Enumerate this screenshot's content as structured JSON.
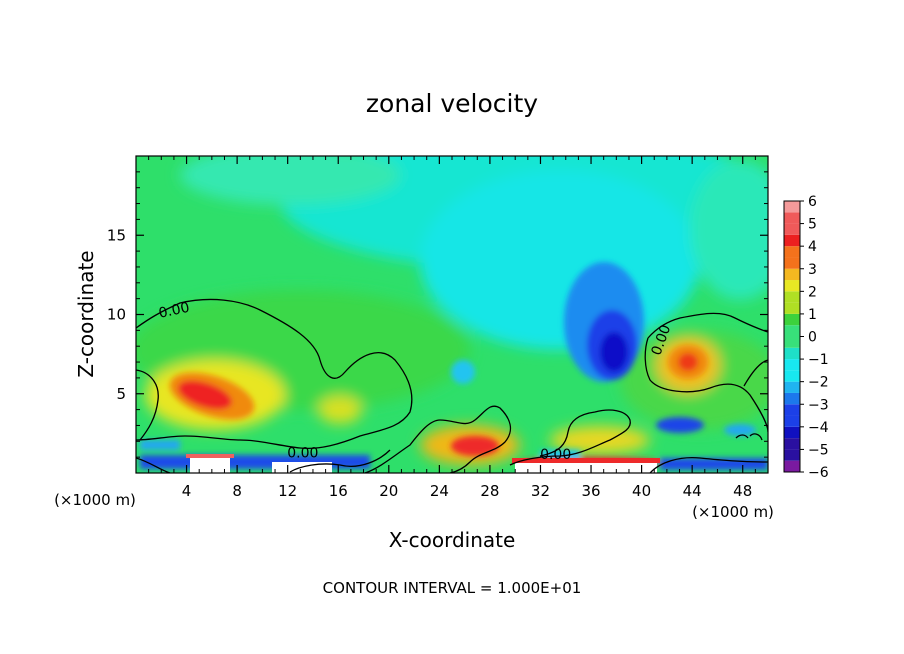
{
  "chart_data": {
    "type": "heatmap",
    "title": "zonal velocity",
    "xlabel": "X-coordinate",
    "ylabel": "Z-coordinate",
    "x_unit_left": "(×1000 m)",
    "x_unit_right": "(×1000 m)",
    "footer": "CONTOUR INTERVAL = 1.000E+01",
    "xlim": [
      0,
      50
    ],
    "ylim": [
      0,
      20
    ],
    "x_ticks": [
      4,
      8,
      12,
      16,
      20,
      24,
      28,
      32,
      36,
      40,
      44,
      48
    ],
    "y_ticks": [
      5,
      10,
      15
    ],
    "colorbar": {
      "min": -6,
      "max": 6,
      "labels": [
        "6",
        "5",
        "4",
        "3",
        "2",
        "1",
        "0",
        "−1",
        "−2",
        "−3",
        "−4",
        "−5",
        "−6"
      ],
      "values": [
        6,
        5,
        4,
        3,
        2,
        1,
        0,
        -1,
        -2,
        -3,
        -4,
        -5,
        -6
      ]
    },
    "contour_labels": [
      {
        "text": "0.00",
        "x": 3.0,
        "y": 10.3
      },
      {
        "text": "0.00",
        "x": 13.2,
        "y": 1.3
      },
      {
        "text": "0.00",
        "x": 33.2,
        "y": 1.2
      },
      {
        "text": "0.00",
        "x": 41.5,
        "y": 8.4
      }
    ],
    "features": [
      {
        "x": 5.5,
        "y": 4.7,
        "value": 4.5
      },
      {
        "x": 37.5,
        "y": 7.6,
        "value": -5.0
      },
      {
        "x": 43.5,
        "y": 6.9,
        "value": 3.5
      },
      {
        "x": 27.0,
        "y": 1.7,
        "value": 4.0
      },
      {
        "x": 34.0,
        "y": 17.0,
        "value": -2.0
      }
    ]
  }
}
